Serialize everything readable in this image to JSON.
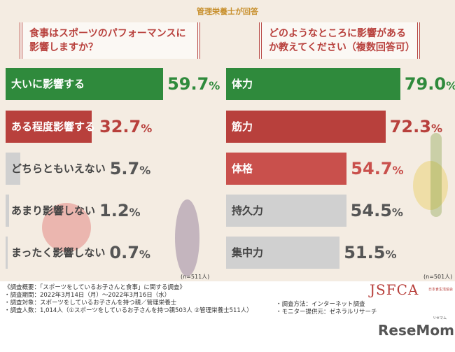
{
  "subtitle": "管理栄養士が回答",
  "chart_data": [
    {
      "type": "bar",
      "orientation": "horizontal",
      "title": "食事はスポーツのパフォーマンスに影響しますか？",
      "categories": [
        "大いに影響する",
        "ある程度影響する",
        "どちらともいえない",
        "あまり影響しない",
        "まったく影響しない"
      ],
      "values": [
        59.7,
        32.7,
        5.7,
        1.2,
        0.7
      ],
      "unit": "%",
      "note": "(n=511人)",
      "colors": [
        "#2f8a3c",
        "#b8403c",
        "#d0d0d0",
        "#d0d0d0",
        "#d0d0d0"
      ],
      "value_colors": [
        "#2f8a3c",
        "#b8403c",
        "#555555",
        "#555555",
        "#555555"
      ]
    },
    {
      "type": "bar",
      "orientation": "horizontal",
      "title": "どのようなところに影響があるか教えてください（複数回答可）",
      "categories": [
        "体力",
        "筋力",
        "体格",
        "持久力",
        "集中力"
      ],
      "values": [
        79.0,
        72.3,
        54.7,
        54.5,
        51.5
      ],
      "unit": "%",
      "note": "(n=501人)",
      "colors": [
        "#2f8a3c",
        "#b8403c",
        "#c9504c",
        "#d0d0d0",
        "#d0d0d0"
      ],
      "value_colors": [
        "#2f8a3c",
        "#b8403c",
        "#c9504c",
        "#555555",
        "#555555"
      ]
    }
  ],
  "footer": {
    "lines": [
      "《調査概要：「スポーツをしているお子さんと食事」に関する調査》",
      "・調査期間：2022年3月14日（月）～2022年3月16日（水）",
      "・調査対象：スポーツをしているお子さんを持つ親／管理栄養士",
      "・調査人数：1,014人（①スポーツをしているお子さんを持つ親503人 ②管理栄養士511人）"
    ],
    "right": [
      "・調査方法：インターネット調査",
      "・モニター提供元：ゼネラルリサーチ"
    ]
  },
  "logos": {
    "jsfca": "JSFCA",
    "jsfca_sub": "日本食生活協会",
    "resemom": "ReseMom",
    "resemom_sub": "リセマム"
  }
}
